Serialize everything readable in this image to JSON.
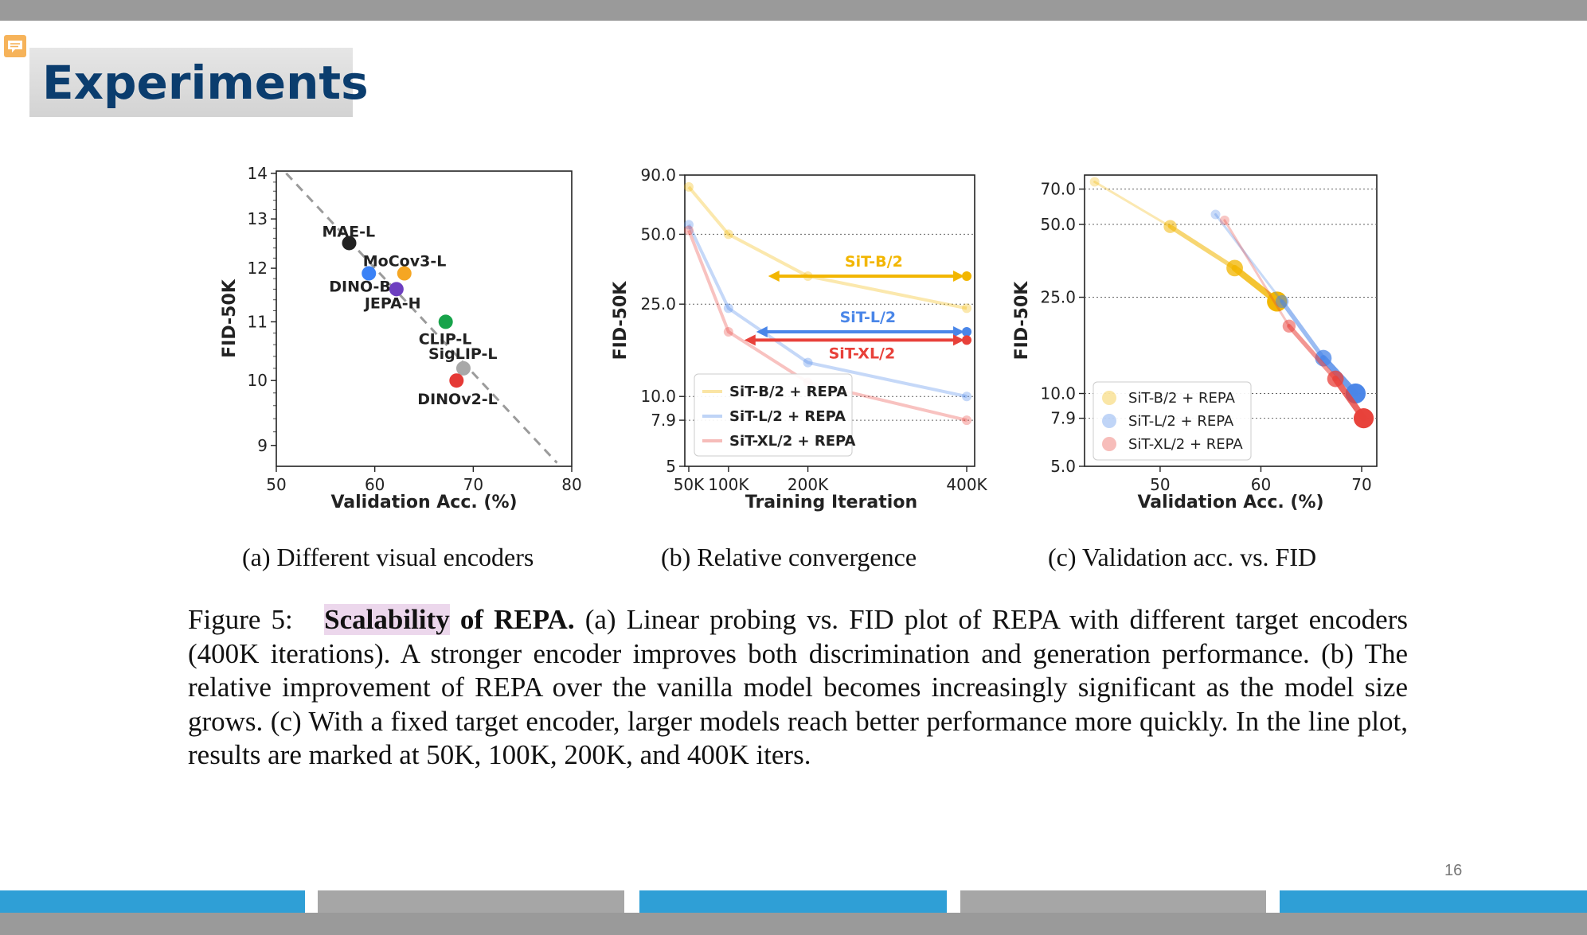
{
  "slide": {
    "title": "Experiments",
    "page_number": "16"
  },
  "panels": [
    {
      "caption": "(a) Different visual encoders"
    },
    {
      "caption": "(b) Relative convergence"
    },
    {
      "caption": "(c) Validation acc. vs. FID"
    }
  ],
  "figure_caption": {
    "prefix": "Figure 5:",
    "highlight": "Scalability",
    "bold_rest": "of REPA.",
    "body": "(a) Linear probing vs.  FID plot of REPA with different target encoders (400K iterations).  A stronger encoder improves both discrimination and generation performance.  (b) The relative improvement of REPA over the vanilla model becomes increasingly significant as the model size grows. (c) With a fixed target encoder, larger models reach better performance more quickly. In the line plot, results are marked at 50K, 100K, 200K, and 400K iters."
  },
  "colors": {
    "title": "#0b3d6e",
    "sitb": "#f2b600",
    "sitl": "#4a86e8",
    "sitxl": "#e8413a",
    "footer_blue": "#2f9fd6",
    "footer_gray": "#a6a6a6"
  },
  "chart_data": [
    {
      "type": "scatter",
      "xlabel": "Validation Acc. (%)",
      "ylabel": "FID-50K",
      "xlim": [
        50,
        80
      ],
      "ylim": [
        8.7,
        14.05
      ],
      "yscale": "log",
      "xticks": [
        "50",
        "60",
        "70",
        "80"
      ],
      "yticks": [
        "9",
        "10",
        "11",
        "12",
        "13",
        "14"
      ],
      "trendline": {
        "from": [
          51,
          14
        ],
        "to": [
          78.5,
          8.75
        ],
        "style": "dashed"
      },
      "points": [
        {
          "label": "MAE-L",
          "x": 57.4,
          "y": 12.5,
          "color": "#222222"
        },
        {
          "label": "MoCov3-L",
          "x": 63.0,
          "y": 11.9,
          "color": "#f5a623"
        },
        {
          "label": "DINO-B",
          "x": 59.4,
          "y": 11.9,
          "color": "#3b82f6"
        },
        {
          "label": "JEPA-H",
          "x": 62.2,
          "y": 11.6,
          "color": "#6d3fc0"
        },
        {
          "label": "CLIP-L",
          "x": 67.2,
          "y": 11.0,
          "color": "#17a34a"
        },
        {
          "label": "SigLIP-L",
          "x": 69.0,
          "y": 10.2,
          "color": "#a8a8a8"
        },
        {
          "label": "DINOv2-L",
          "x": 68.3,
          "y": 10.0,
          "color": "#e53935"
        }
      ]
    },
    {
      "type": "line",
      "xlabel": "Training Iteration",
      "ylabel": "FID-50K",
      "xlim": [
        45000,
        410000
      ],
      "ylim": [
        5,
        90
      ],
      "yscale": "log",
      "x": [
        50000,
        100000,
        200000,
        400000
      ],
      "xticks": [
        "50K",
        "100K",
        "200K",
        "400K"
      ],
      "yticks": [
        "5",
        "7.9",
        "10.0",
        "25.0",
        "50.0",
        "90.0"
      ],
      "series": [
        {
          "name": "SiT-B/2 + REPA",
          "values": [
            80,
            50,
            33,
            24
          ],
          "color": "#f2b600"
        },
        {
          "name": "SiT-L/2 + REPA",
          "values": [
            55,
            24,
            14,
            10
          ],
          "color": "#4a86e8"
        },
        {
          "name": "SiT-XL/2 + REPA",
          "values": [
            52,
            19,
            11.5,
            7.9
          ],
          "color": "#e8413a"
        }
      ],
      "annotations": [
        {
          "text": "SiT-B/2",
          "from_x": 150000,
          "to_x": 400000,
          "y": 33,
          "color": "#f2b600"
        },
        {
          "text": "SiT-L/2",
          "from_x": 135000,
          "to_x": 400000,
          "y": 19,
          "color": "#4a86e8"
        },
        {
          "text": "SiT-XL/2",
          "from_x": 120000,
          "to_x": 400000,
          "y": 17.5,
          "color": "#e8413a"
        }
      ],
      "legend": "lower-left"
    },
    {
      "type": "line",
      "xlabel": "Validation Acc. (%)",
      "ylabel": "FID-50K",
      "xlim": [
        42.5,
        71.5
      ],
      "ylim": [
        5,
        80
      ],
      "yscale": "log",
      "grid": "horizontal dotted",
      "xticks": [
        "50",
        "60",
        "70"
      ],
      "yticks": [
        "5.0",
        "7.9",
        "10.0",
        "25.0",
        "50.0",
        "70.0"
      ],
      "series": [
        {
          "name": "SiT-B/2 + REPA",
          "color": "#f2b600",
          "points": [
            [
              43.5,
              75
            ],
            [
              51,
              49
            ],
            [
              57.4,
              33
            ],
            [
              61.6,
              24
            ]
          ]
        },
        {
          "name": "SiT-L/2 + REPA",
          "color": "#4a86e8",
          "points": [
            [
              55.5,
              55
            ],
            [
              62.1,
              24
            ],
            [
              66.2,
              14
            ],
            [
              69.4,
              10
            ]
          ]
        },
        {
          "name": "SiT-XL/2 + REPA",
          "color": "#e8413a",
          "points": [
            [
              56.4,
              52
            ],
            [
              62.8,
              19
            ],
            [
              67.4,
              11.5
            ],
            [
              70.2,
              7.9
            ]
          ]
        }
      ],
      "legend": "lower-left"
    }
  ]
}
